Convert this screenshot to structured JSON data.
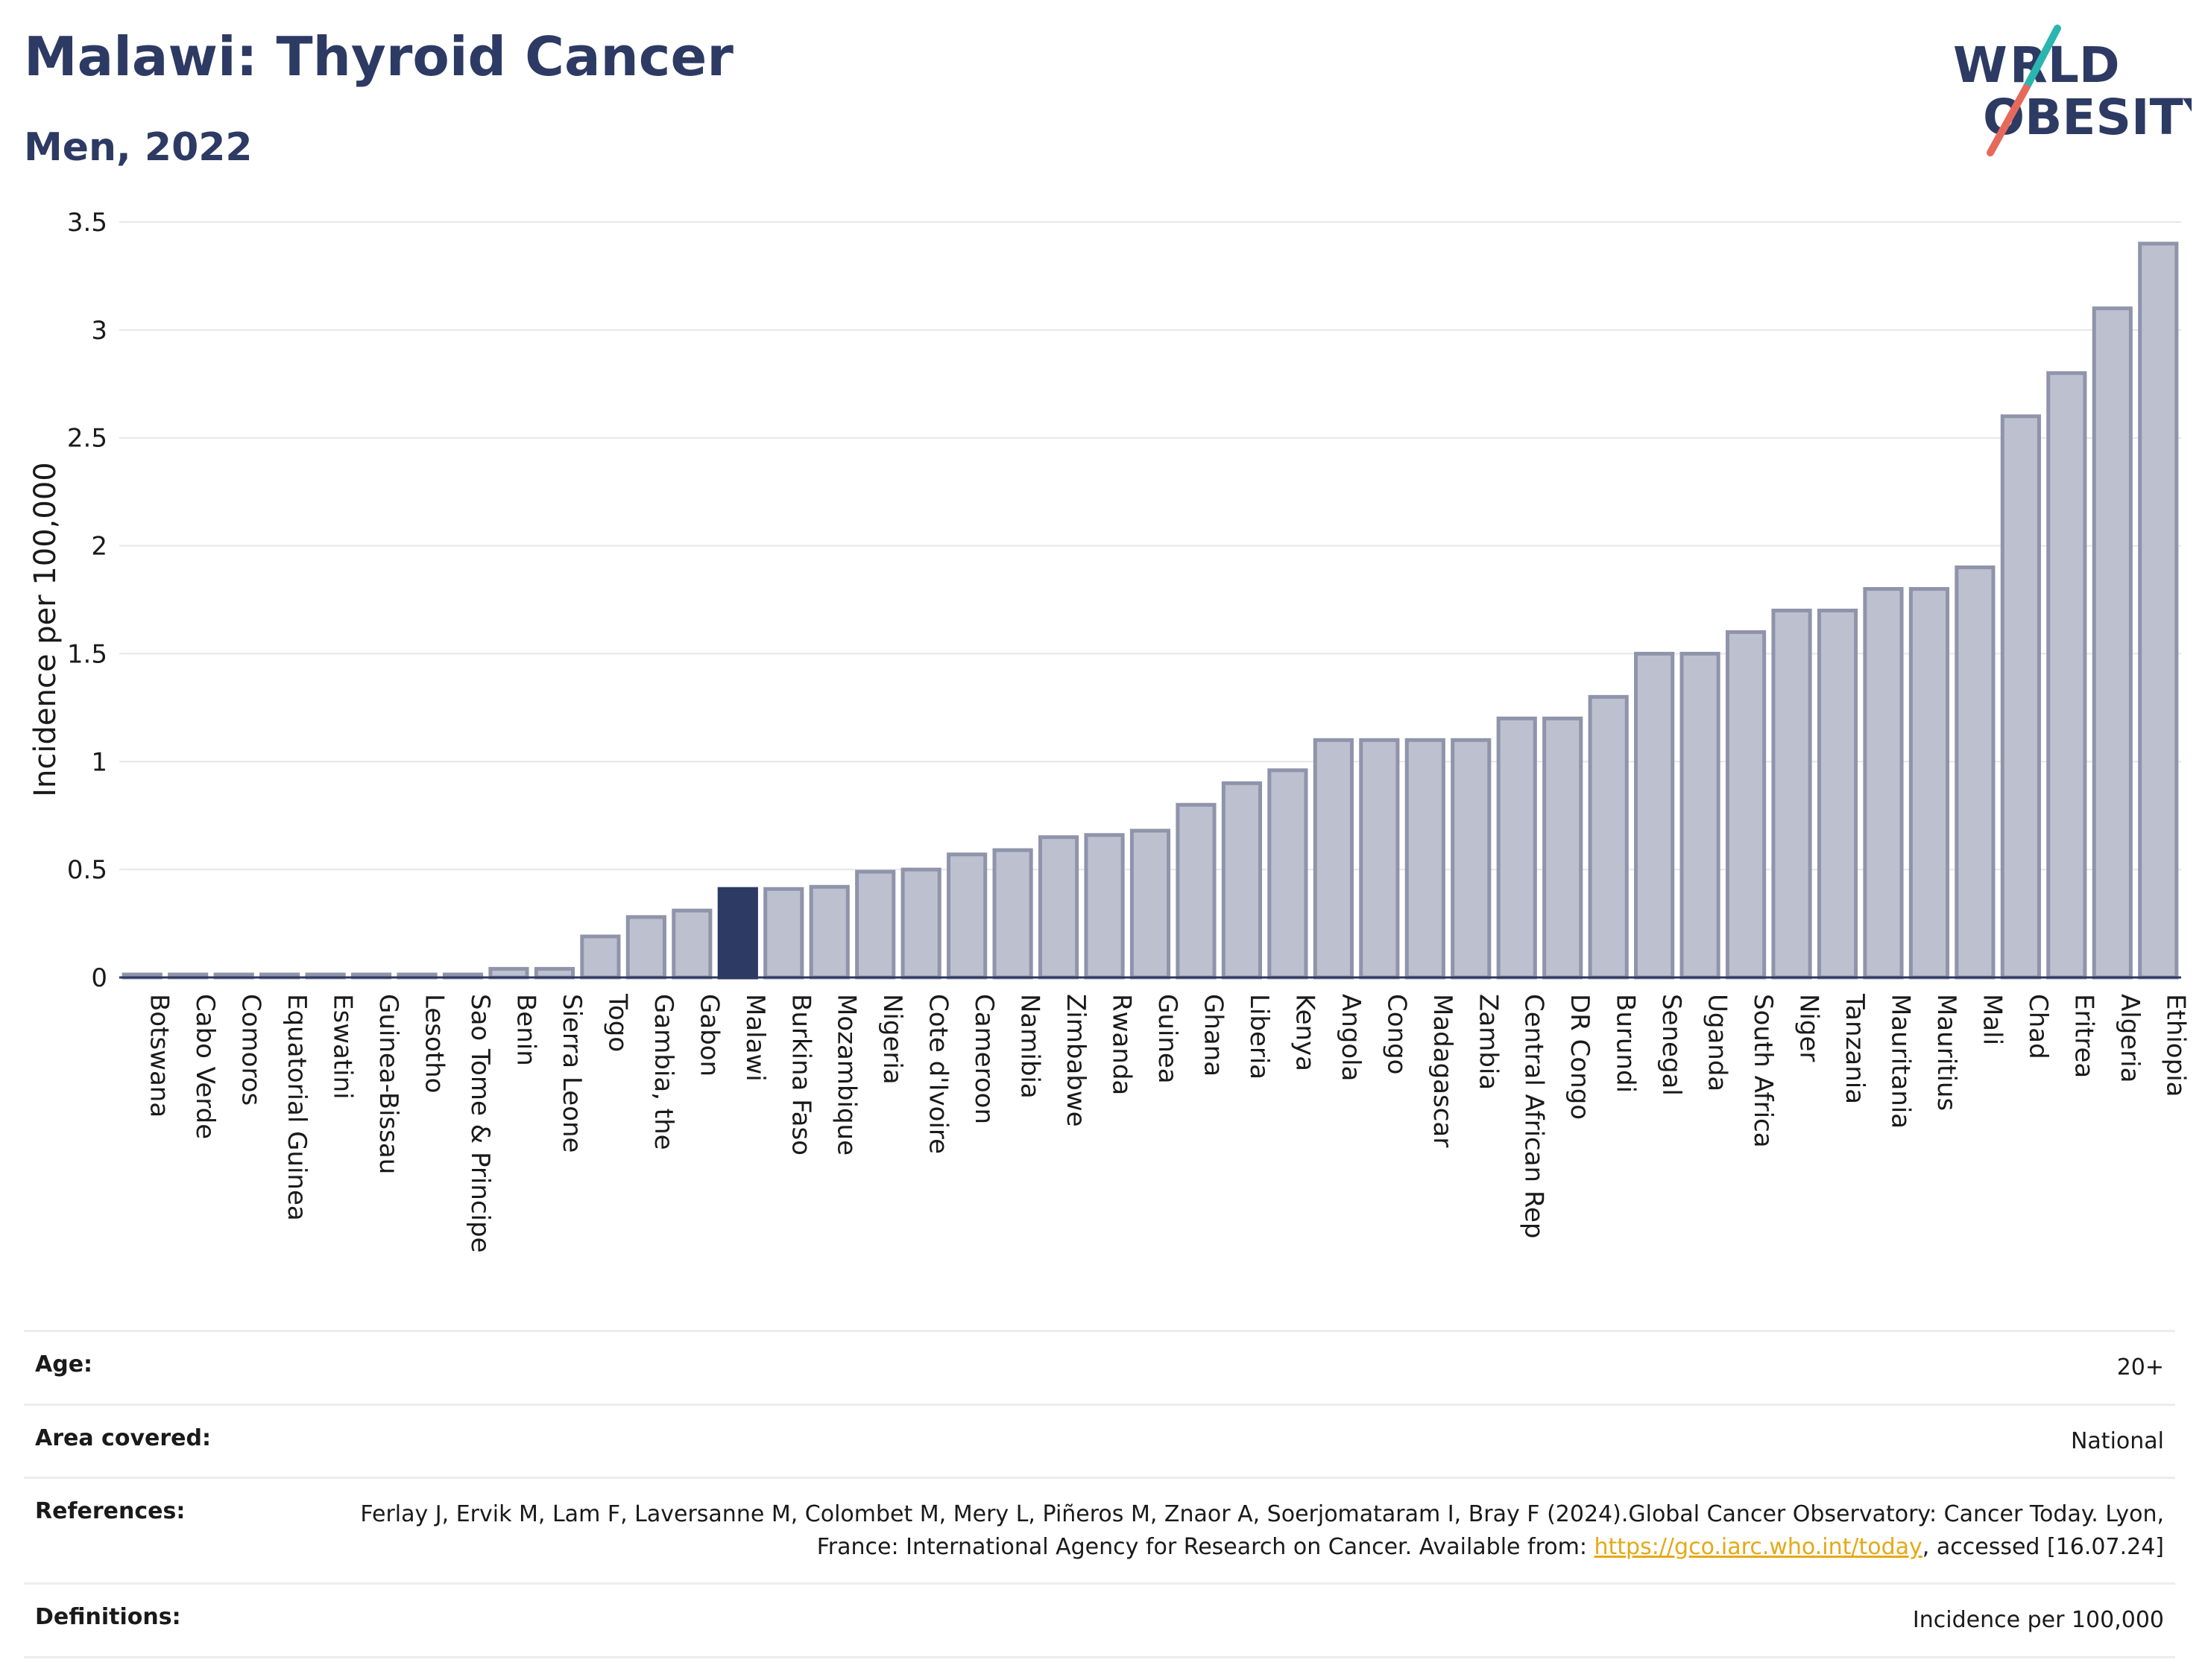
{
  "header": {
    "title": "Malawi: Thyroid Cancer",
    "subtitle": "Men, 2022",
    "logo_text": "WORLD OBESITY"
  },
  "colors": {
    "highlight": "#2d3a63",
    "bar_fill": "#bdc0ce",
    "bar_stroke": "#8f94ab",
    "title": "#2d3a63",
    "link": "#e5a916"
  },
  "chart_data": {
    "type": "bar",
    "title": "Malawi: Thyroid Cancer",
    "subtitle": "Men, 2022",
    "ylabel": "Incidence per 100,000",
    "xlabel": "",
    "ylim": [
      0,
      3.5
    ],
    "yticks": [
      0,
      0.5,
      1,
      1.5,
      2,
      2.5,
      3,
      3.5
    ],
    "ytick_labels": [
      "0",
      "0.5",
      "1",
      "1.5",
      "2",
      "2.5",
      "3",
      "3.5"
    ],
    "grid": true,
    "highlight": "Malawi",
    "categories": [
      "Botswana",
      "Cabo Verde",
      "Comoros",
      "Equatorial Guinea",
      "Eswatini",
      "Guinea-Bissau",
      "Lesotho",
      "Sao Tome & Principe",
      "Benin",
      "Sierra Leone",
      "Togo",
      "Gambia, the",
      "Gabon",
      "Malawi",
      "Burkina Faso",
      "Mozambique",
      "Nigeria",
      "Cote d'Ivoire",
      "Cameroon",
      "Namibia",
      "Zimbabwe",
      "Rwanda",
      "Guinea",
      "Ghana",
      "Liberia",
      "Kenya",
      "Angola",
      "Congo",
      "Madagascar",
      "Zambia",
      "Central African Rep",
      "DR Congo",
      "Burundi",
      "Senegal",
      "Uganda",
      "South Africa",
      "Niger",
      "Tanzania",
      "Mauritania",
      "Mauritius",
      "Mali",
      "Chad",
      "Eritrea",
      "Algeria",
      "Ethiopia"
    ],
    "values": [
      0.01,
      0.01,
      0.01,
      0.01,
      0.01,
      0.01,
      0.01,
      0.01,
      0.04,
      0.04,
      0.19,
      0.28,
      0.31,
      0.41,
      0.41,
      0.42,
      0.49,
      0.5,
      0.57,
      0.59,
      0.65,
      0.66,
      0.68,
      0.8,
      0.9,
      0.96,
      1.1,
      1.1,
      1.1,
      1.1,
      1.2,
      1.2,
      1.3,
      1.5,
      1.5,
      1.6,
      1.7,
      1.7,
      1.8,
      1.8,
      1.9,
      2.6,
      2.8,
      3.1,
      3.4
    ]
  },
  "info": {
    "rows": [
      {
        "label": "Age:",
        "value": "20+"
      },
      {
        "label": "Area covered:",
        "value": "National"
      },
      {
        "label": "References:",
        "value_pre": "Ferlay J, Ervik M, Lam F, Laversanne M, Colombet M, Mery L, Piñeros M, Znaor A, Soerjomataram I, Bray F (2024).Global Cancer Observatory: Cancer Today. Lyon, France: International Agency for Research on Cancer. Available from: ",
        "link": "https://gco.iarc.who.int/today",
        "value_post": ", accessed [16.07.24]"
      },
      {
        "label": "Definitions:",
        "value": "Incidence per 100,000"
      }
    ]
  }
}
